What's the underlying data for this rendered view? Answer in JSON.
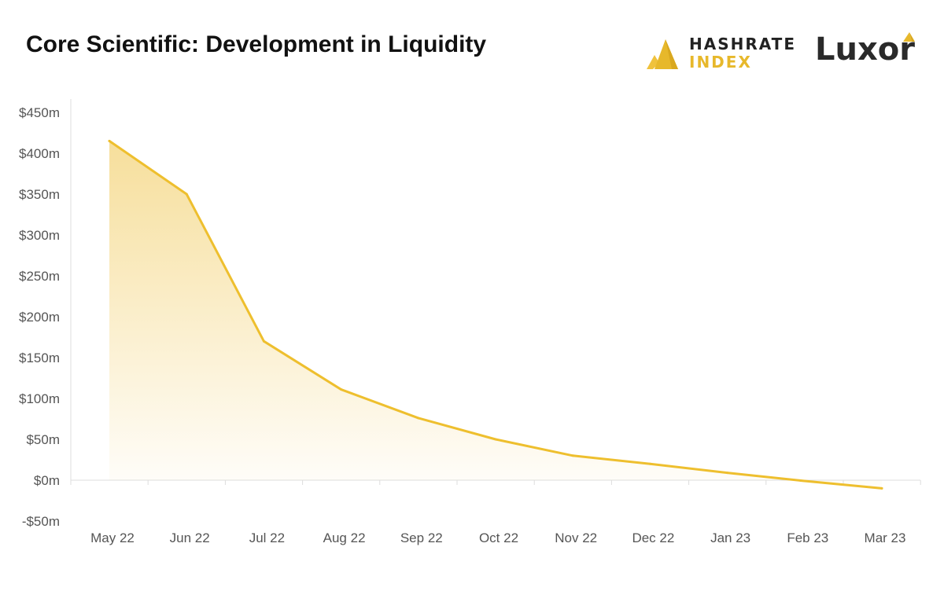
{
  "header": {
    "title": "Core Scientific: Development in Liquidity",
    "brand1_line1": "HASHRATE",
    "brand1_line2": "INDEX",
    "brand2": "Luxor"
  },
  "colors": {
    "line": "#eebf2e",
    "fill": "#f5d98a",
    "accent": "#e7b82b",
    "text": "#555555",
    "grid": "#dddddd"
  },
  "chart_data": {
    "type": "area",
    "title": "Core Scientific: Development in Liquidity",
    "categories": [
      "May 22",
      "Jun 22",
      "Jul 22",
      "Aug 22",
      "Sep 22",
      "Oct 22",
      "Nov 22",
      "Dec 22",
      "Jan 23",
      "Feb 23",
      "Mar 23"
    ],
    "series": [
      {
        "values": [
          415,
          350,
          170,
          111,
          76,
          50,
          30,
          20,
          9,
          -1,
          -10
        ]
      }
    ],
    "y_ticks": [
      -50,
      0,
      50,
      100,
      150,
      200,
      250,
      300,
      350,
      400,
      450
    ],
    "y_tick_labels": [
      "-$50m",
      "$0m",
      "$50m",
      "$100m",
      "$150m",
      "$200m",
      "$250m",
      "$300m",
      "$350m",
      "$400m",
      "$450m"
    ],
    "ylim": [
      -50,
      450
    ],
    "xlabel": "",
    "ylabel": "",
    "grid": false,
    "legend": "none"
  }
}
